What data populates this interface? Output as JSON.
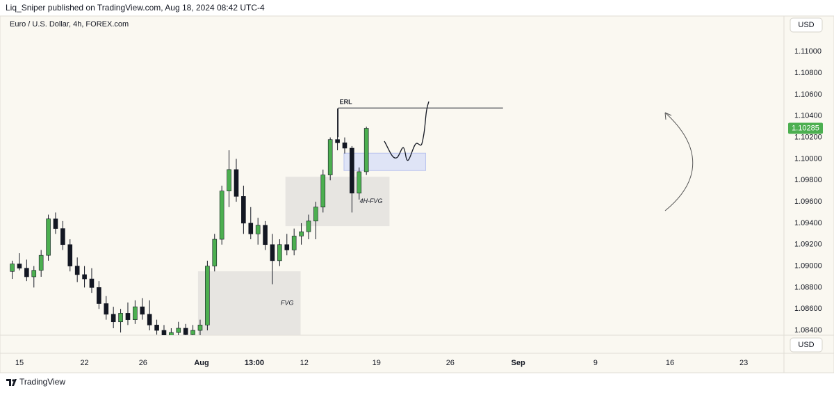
{
  "header": {
    "publisher": "Liq_Sniper published on TradingView.com, Aug 18, 2024 08:42 UTC-4",
    "brand": "TradingView"
  },
  "chart_data": {
    "type": "candlestick",
    "title": "Euro / U.S. Dollar, 4h, FOREX.com",
    "currency": "USD",
    "last_price": 1.10285,
    "up_color": "#4caf50",
    "down_color": "#131722",
    "grid": false,
    "x": [
      -1,
      0,
      1,
      2,
      3,
      4,
      5,
      6,
      7,
      8,
      9,
      10,
      11,
      12,
      13,
      14,
      15,
      16,
      17,
      18,
      19,
      20,
      21,
      22,
      23,
      24,
      25,
      26,
      27,
      28,
      29,
      30,
      31,
      32,
      33,
      34,
      35,
      36,
      37,
      38,
      39,
      40,
      41,
      42,
      43,
      44,
      45,
      46,
      47,
      48
    ],
    "open": [
      1.0895,
      1.0902,
      1.0898,
      1.089,
      1.0896,
      1.091,
      1.0944,
      1.0935,
      1.092,
      1.09,
      1.0892,
      1.0888,
      1.088,
      1.0865,
      1.0855,
      1.0848,
      1.0856,
      1.085,
      1.0862,
      1.0855,
      1.0845,
      1.084,
      1.0835,
      1.0838,
      1.0842,
      1.0836,
      1.084,
      1.0845,
      1.09,
      1.0925,
      1.097,
      1.099,
      1.0965,
      1.094,
      1.093,
      1.0938,
      1.092,
      1.0905,
      1.092,
      1.0915,
      1.0928,
      1.0932,
      1.0942,
      1.0955,
      1.0985,
      1.1018,
      1.1015,
      1.101,
      1.0968,
      1.0988
    ],
    "high": [
      1.0905,
      1.0912,
      1.0906,
      1.09,
      1.0915,
      1.0948,
      1.095,
      1.0942,
      1.0925,
      1.0908,
      1.09,
      1.0898,
      1.0886,
      1.0872,
      1.0862,
      1.086,
      1.0866,
      1.0868,
      1.087,
      1.0868,
      1.085,
      1.0845,
      1.0842,
      1.0848,
      1.0846,
      1.0845,
      1.085,
      1.0905,
      1.093,
      1.0975,
      1.1008,
      1.1,
      1.0975,
      1.0955,
      1.0945,
      1.0942,
      1.093,
      1.0925,
      1.093,
      1.0935,
      1.094,
      1.0948,
      1.096,
      1.099,
      1.102,
      1.1047,
      1.102,
      1.1012,
      1.0992,
      1.103
    ],
    "low": [
      1.0888,
      1.0896,
      1.0886,
      1.088,
      1.089,
      1.0905,
      1.093,
      1.0915,
      1.0895,
      1.0885,
      1.088,
      1.0875,
      1.086,
      1.085,
      1.0842,
      1.0838,
      1.0845,
      1.0846,
      1.085,
      1.084,
      1.0836,
      1.083,
      1.0828,
      1.083,
      1.0832,
      1.0828,
      1.0832,
      1.084,
      1.0895,
      1.092,
      1.0955,
      1.096,
      1.093,
      1.0925,
      1.092,
      1.0915,
      1.0883,
      1.09,
      1.091,
      1.091,
      1.092,
      1.0925,
      1.0925,
      1.095,
      1.098,
      1.1008,
      1.1005,
      1.095,
      1.0962,
      1.0985
    ],
    "close": [
      1.0902,
      1.0898,
      1.089,
      1.0896,
      1.091,
      1.0944,
      1.0935,
      1.092,
      1.09,
      1.0892,
      1.0888,
      1.088,
      1.0865,
      1.0855,
      1.0848,
      1.0856,
      1.085,
      1.0862,
      1.0855,
      1.0845,
      1.084,
      1.0835,
      1.0838,
      1.0842,
      1.0836,
      1.084,
      1.0845,
      1.09,
      1.0925,
      1.097,
      1.099,
      1.0965,
      1.094,
      1.093,
      1.0938,
      1.092,
      1.0905,
      1.092,
      1.0915,
      1.0928,
      1.0932,
      1.0942,
      1.0955,
      1.0985,
      1.1018,
      1.1015,
      1.101,
      1.0968,
      1.0988,
      1.10285
    ],
    "xlim": [
      -1.92,
      105
    ],
    "xticks": [
      {
        "value": 0,
        "label": "15"
      },
      {
        "value": 9,
        "label": "22"
      },
      {
        "value": 17.1,
        "label": "26"
      },
      {
        "value": 25.2,
        "label": "Aug"
      },
      {
        "value": 32.5,
        "label": "13:00"
      },
      {
        "value": 39.4,
        "label": "12"
      },
      {
        "value": 49.4,
        "label": "19"
      },
      {
        "value": 59.6,
        "label": "26"
      },
      {
        "value": 69,
        "label": "Sep"
      },
      {
        "value": 79.7,
        "label": "9"
      },
      {
        "value": 90,
        "label": "16"
      },
      {
        "value": 100.2,
        "label": "23"
      }
    ],
    "ylim": [
      1.08355,
      1.1119
    ],
    "yticks": [
      {
        "value": 1.11,
        "label": "1.11000"
      },
      {
        "value": 1.108,
        "label": "1.10800"
      },
      {
        "value": 1.106,
        "label": "1.10600"
      },
      {
        "value": 1.104,
        "label": "1.10400"
      },
      {
        "value": 1.102,
        "label": "1.10200"
      },
      {
        "value": 1.1,
        "label": "1.10000"
      },
      {
        "value": 1.098,
        "label": "1.09800"
      },
      {
        "value": 1.096,
        "label": "1.09600"
      },
      {
        "value": 1.094,
        "label": "1.09400"
      },
      {
        "value": 1.092,
        "label": "1.09200"
      },
      {
        "value": 1.09,
        "label": "1.09000"
      },
      {
        "value": 1.088,
        "label": "1.08800"
      },
      {
        "value": 1.086,
        "label": "1.08600"
      },
      {
        "value": 1.084,
        "label": "1.08400"
      }
    ],
    "zones": [
      {
        "label": "FVG",
        "x0": 24.7,
        "x1": 38.9,
        "top": 1.08951,
        "bottom": 1.08355,
        "color": "#e6e4df"
      },
      {
        "label": "4H-FVG",
        "x0": 36.8,
        "x1": 51.2,
        "top": 1.09833,
        "bottom": 1.09373,
        "color": "#e6e4df"
      },
      {
        "x0": 44.9,
        "x1": 56.2,
        "top": 1.10053,
        "bottom": 1.09891,
        "color": "#dde3f6"
      }
    ],
    "level": {
      "label": "ERL",
      "x0": 44.1,
      "x1": 66.9,
      "value": 1.10475
    }
  }
}
